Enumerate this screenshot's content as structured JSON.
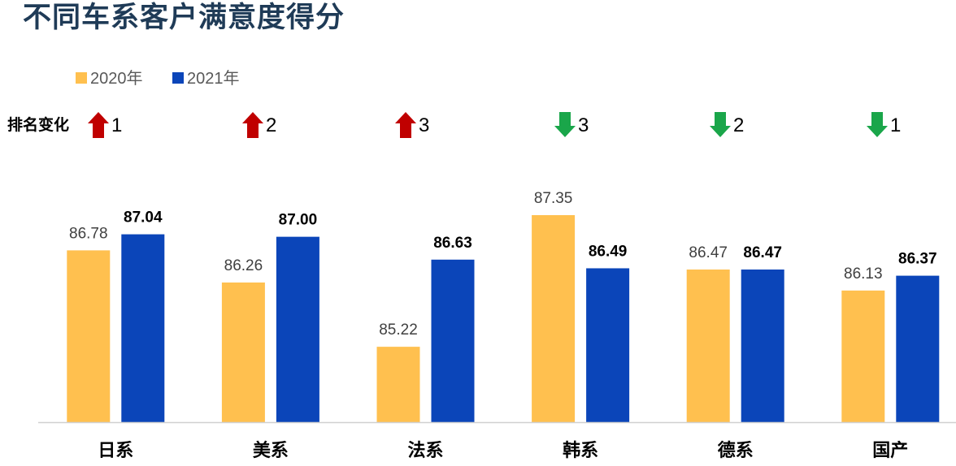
{
  "title": "不同车系客户满意度得分",
  "chart_data": {
    "type": "bar",
    "title": "不同车系客户满意度得分",
    "categories": [
      "日系",
      "美系",
      "法系",
      "韩系",
      "德系",
      "国产"
    ],
    "series": [
      {
        "name": "2020年",
        "values": [
          86.78,
          86.26,
          85.22,
          87.35,
          86.47,
          86.13
        ],
        "color": "#FFC04F"
      },
      {
        "name": "2021年",
        "values": [
          87.04,
          87.0,
          86.63,
          86.49,
          86.47,
          86.37
        ],
        "color": "#0B45B9"
      }
    ],
    "legend_position": "top-left",
    "grid": false,
    "rank_change": {
      "label": "排名变化",
      "items": [
        {
          "direction": "up",
          "value": "1"
        },
        {
          "direction": "up",
          "value": "2"
        },
        {
          "direction": "up",
          "value": "3"
        },
        {
          "direction": "down",
          "value": "3"
        },
        {
          "direction": "down",
          "value": "2"
        },
        {
          "direction": "down",
          "value": "1"
        }
      ],
      "up_color": "#C00000",
      "down_color": "#1AA64A"
    }
  }
}
